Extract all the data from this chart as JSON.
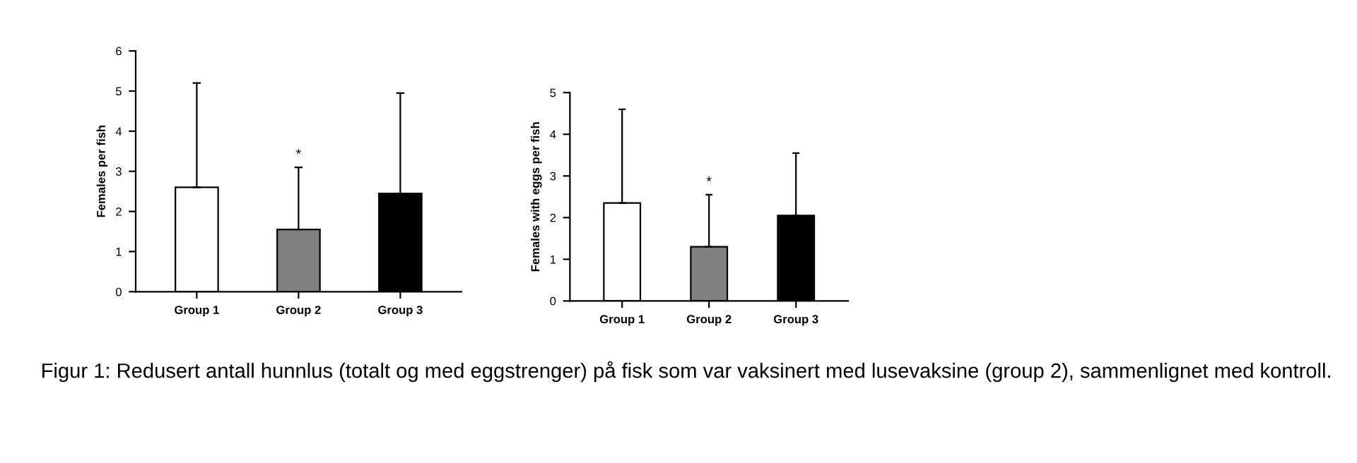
{
  "chart_data": [
    {
      "type": "bar",
      "ylabel": "Females per fish",
      "categories": [
        "Group 1",
        "Group 2",
        "Group 3"
      ],
      "values": [
        2.6,
        1.55,
        2.45
      ],
      "colors": [
        "#ffffff",
        "#808080",
        "#000000"
      ],
      "errors": [
        [
          2.6,
          5.2
        ],
        [
          1.55,
          3.1
        ],
        [
          2.45,
          4.95
        ]
      ],
      "ylim": [
        0,
        6
      ],
      "yticks": [
        0,
        1,
        2,
        3,
        4,
        5,
        6
      ],
      "grid": false,
      "legend": false,
      "annotations": [
        "*"
      ]
    },
    {
      "type": "bar",
      "ylabel": "Females with eggs per fish",
      "categories": [
        "Group 1",
        "Group 2",
        "Group 3"
      ],
      "values": [
        2.35,
        1.3,
        2.05
      ],
      "colors": [
        "#ffffff",
        "#808080",
        "#000000"
      ],
      "errors": [
        [
          2.35,
          4.6
        ],
        [
          1.3,
          2.55
        ],
        [
          2.05,
          3.55
        ]
      ],
      "ylim": [
        0,
        5
      ],
      "yticks": [
        0,
        1,
        2,
        3,
        4,
        5
      ],
      "grid": false,
      "legend": false,
      "annotations": [
        "*",
        "Figur 1: Redusert antall hunnlus (totalt og med eggstrenger) på fisk som var vaksinert med lusevaksine (group 2), sammenlignet med kontroll."
      ]
    }
  ]
}
